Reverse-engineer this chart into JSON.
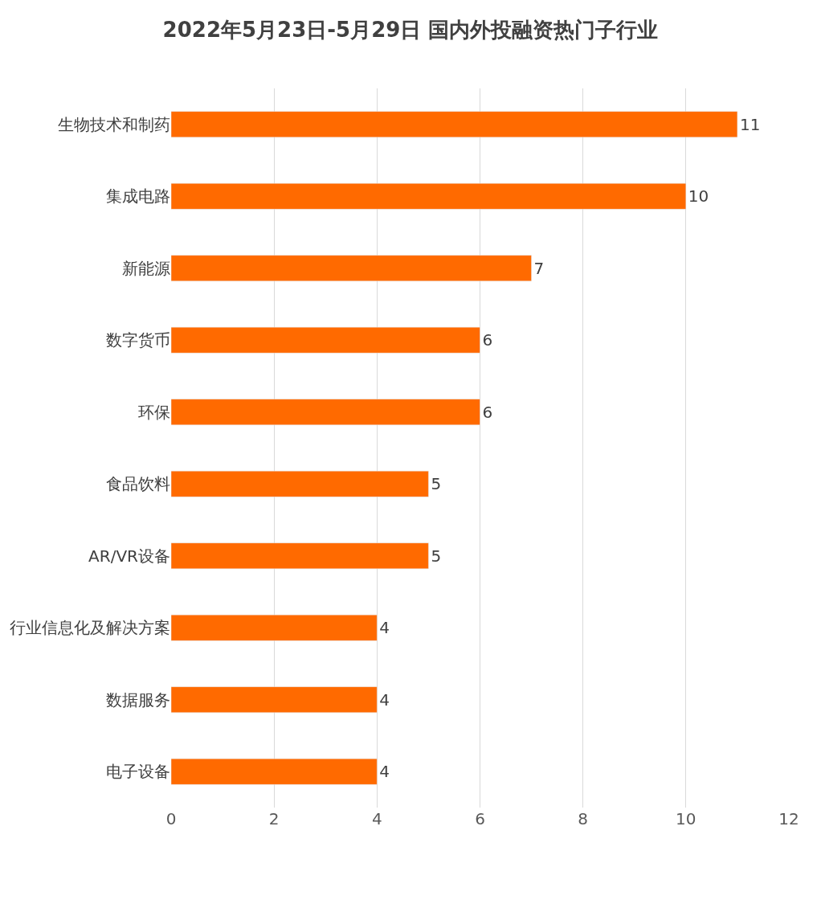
{
  "chart_data": {
    "type": "bar",
    "orientation": "horizontal",
    "title": "2022年5月23日-5月29日 国内外投融资热门子行业",
    "categories": [
      "生物技术和制药",
      "集成电路",
      "新能源",
      "数字货币",
      "环保",
      "食品饮料",
      "AR/VR设备",
      "行业信息化及解决方案",
      "数据服务",
      "电子设备"
    ],
    "values": [
      11,
      10,
      7,
      6,
      6,
      5,
      5,
      4,
      4,
      4
    ],
    "color": "#ff6a00",
    "xlim": [
      0,
      12
    ],
    "xticks": [
      0,
      2,
      4,
      6,
      8,
      10,
      12
    ],
    "grid": "x",
    "data_labels": true,
    "legend": false
  }
}
